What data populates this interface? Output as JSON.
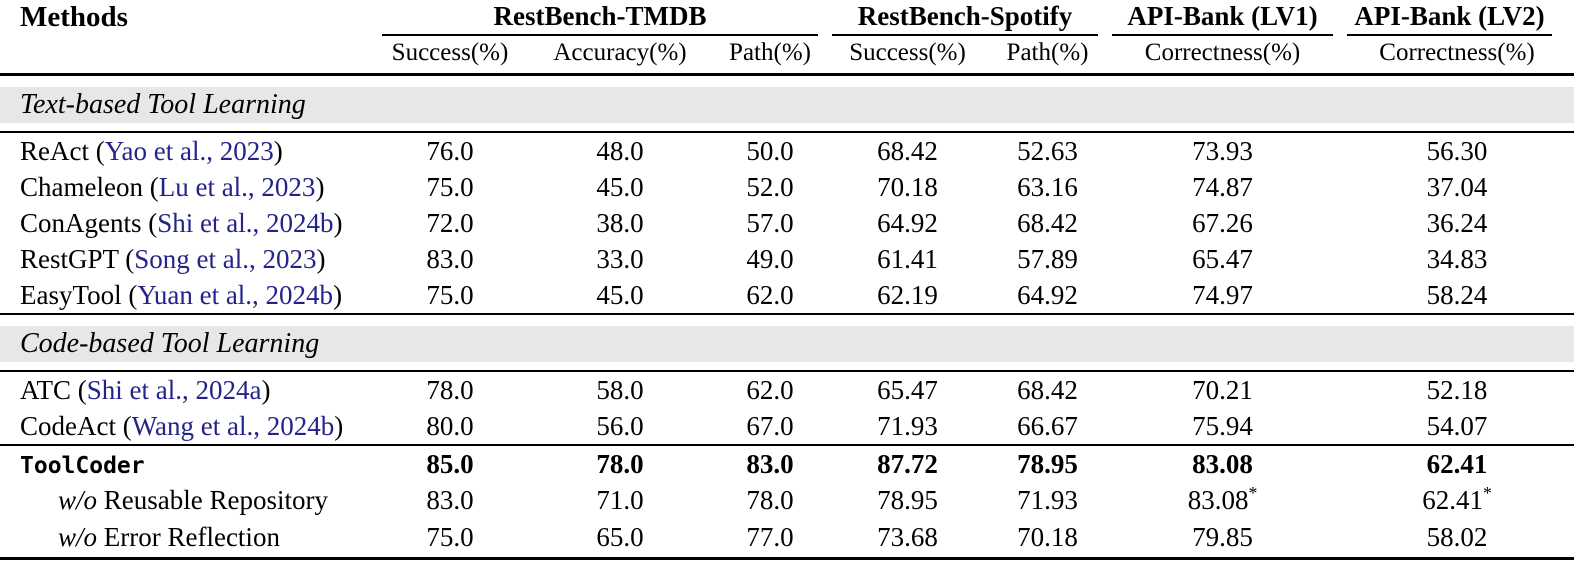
{
  "header": {
    "methods_label": "Methods",
    "groups": [
      {
        "label": "RestBench-TMDB",
        "subcols": [
          "Success(%)",
          "Accuracy(%)",
          "Path(%)"
        ]
      },
      {
        "label": "RestBench-Spotify",
        "subcols": [
          "Success(%)",
          "Path(%)"
        ]
      },
      {
        "label": "API-Bank (LV1)",
        "subcols": [
          "Correctness(%)"
        ]
      },
      {
        "label": "API-Bank (LV2)",
        "subcols": [
          "Correctness(%)"
        ]
      }
    ]
  },
  "sections": [
    {
      "title": "Text-based Tool Learning",
      "rows": [
        {
          "method": "ReAct",
          "citation": "Yao et al., 2023",
          "values": [
            "76.0",
            "48.0",
            "50.0",
            "68.42",
            "52.63",
            "73.93",
            "56.30"
          ]
        },
        {
          "method": "Chameleon",
          "citation": "Lu et al., 2023",
          "values": [
            "75.0",
            "45.0",
            "52.0",
            "70.18",
            "63.16",
            "74.87",
            "37.04"
          ]
        },
        {
          "method": "ConAgents",
          "citation": "Shi et al., 2024b",
          "values": [
            "72.0",
            "38.0",
            "57.0",
            "64.92",
            "68.42",
            "67.26",
            "36.24"
          ]
        },
        {
          "method": "RestGPT",
          "citation": "Song et al., 2023",
          "values": [
            "83.0",
            "33.0",
            "49.0",
            "61.41",
            "57.89",
            "65.47",
            "34.83"
          ]
        },
        {
          "method": "EasyTool",
          "citation": "Yuan et al., 2024b",
          "values": [
            "75.0",
            "45.0",
            "62.0",
            "62.19",
            "64.92",
            "74.97",
            "58.24"
          ]
        }
      ]
    },
    {
      "title": "Code-based Tool Learning",
      "rows": [
        {
          "method": "ATC",
          "citation": "Shi et al., 2024a",
          "values": [
            "78.0",
            "58.0",
            "62.0",
            "65.47",
            "68.42",
            "70.21",
            "52.18"
          ]
        },
        {
          "method": "CodeAct",
          "citation": "Wang et al., 2024b",
          "values": [
            "80.0",
            "56.0",
            "67.0",
            "71.93",
            "66.67",
            "75.94",
            "54.07"
          ]
        }
      ]
    },
    {
      "title": null,
      "rows": [
        {
          "method": "ToolCoder",
          "mono": true,
          "bold": true,
          "values": [
            "85.0",
            "78.0",
            "83.0",
            "87.72",
            "78.95",
            "83.08",
            "62.41"
          ]
        },
        {
          "method": "Reusable Repository",
          "prefix": "w/o",
          "indent": true,
          "values": [
            "83.0",
            "71.0",
            "78.0",
            "78.95",
            "71.93",
            "83.08*",
            "62.41*"
          ]
        },
        {
          "method": "Error Reflection",
          "prefix": "w/o",
          "indent": true,
          "values": [
            "75.0",
            "65.0",
            "77.0",
            "73.68",
            "70.18",
            "79.85",
            "58.02"
          ]
        }
      ]
    }
  ],
  "colors": {
    "citation_link": "#23238a",
    "section_band": "#e7e7e7"
  }
}
